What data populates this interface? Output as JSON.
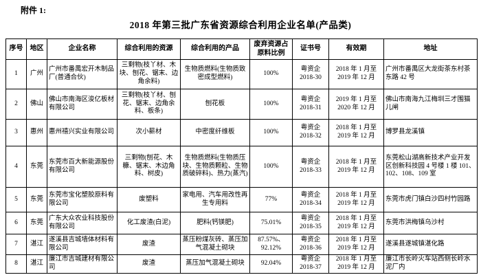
{
  "page": {
    "attachment_label": "附件 1:",
    "title": "2018 年第三批广东省资源综合利用企业名单(产品类)"
  },
  "table": {
    "headers": [
      "序号",
      "地区",
      "企业名称",
      "综合利用的资源",
      "综合利用的产品",
      "废弃资源占原料比例",
      "证书号",
      "有效期",
      "地址"
    ],
    "rows": [
      [
        "1",
        "广州",
        "广州市番禺宏开木制品厂(普通合伙)",
        "三剩物(枝丫材、木块、刨花、锯末、边角余料)",
        "生物质燃料(生物质致密成型燃料)",
        "100%",
        "粤资企\n2018-30",
        "2018 年 1 月至\n2019 年 12 月",
        "广州市番禺区大龙街茶东村茶东路 42 号"
      ],
      [
        "2",
        "佛山",
        "佛山市南海区浚亿板材有限公司",
        "三剩物(枝丫材、刨花、锯末、边角余料、板条)",
        "刨花板",
        "100%",
        "粤资企\n2018-31",
        "2019 年 1 月至\n2020 年 12 月",
        "佛山市南海九江梅圳三才围猫儿闸"
      ],
      [
        "3",
        "惠州",
        "惠州禧兴实业有限公司",
        "次小薪材",
        "中密度纤维板",
        "100%",
        "粤资企\n2018-32",
        "2018 年 1 月至\n2019 年 12 月",
        "博罗县龙溪镇"
      ],
      [
        "4",
        "东莞",
        "东莞市百大新能源股份有限公司",
        "三剩物(刨花、木糠、锯末、木边角料、树皮)",
        "生物质燃料(生物质压块、生物质颗粒、生物质破碎料)、热力(蒸汽)",
        "100%",
        "粤资企\n2018-33",
        "2018 年 1 月至\n2019 年 12 月",
        "东莞松山湖高新技术产业开发区创新科技园 4 号楼 1 楼 101、102、108、109 室"
      ],
      [
        "5",
        "东莞",
        "东莞市宝化塑胶原料有限公司",
        "废塑料",
        "家电用、汽车用改性再生专用料",
        "77%",
        "粤资企\n2018-34",
        "2018 年 1 月至\n2019 年 12 月",
        "东莞市虎门镇白沙四村竹园路"
      ],
      [
        "6",
        "东莞",
        "广东大众农业科技股份有限公司",
        "化工废渣(白泥)",
        "肥料(钙镁肥)",
        "75.01%",
        "粤资企\n2018-35",
        "2018 年 1 月至\n2019 年 12 月",
        "东莞市洪梅镇乌沙村"
      ],
      [
        "7",
        "湛江",
        "遂溪县吉城墙体材料有限公司",
        "废渣",
        "蒸压粉煤灰砖、蒸压加气混凝土砌块",
        "87.57%、\n92.12%",
        "粤资企\n2018-36",
        "2018 年 1 月至\n2019 年 12 月",
        "遂溪县遂城镇湛化路"
      ],
      [
        "8",
        "湛江",
        "廉江市吉城建材有限公司",
        "废渣",
        "蒸压加气混凝土砌块",
        "92.04%",
        "粤资企\n2018-37",
        "2018 年 1 月至\n2019 年 12 月",
        "廉江市长岭火车站西侧长岭水泥厂内"
      ]
    ]
  }
}
